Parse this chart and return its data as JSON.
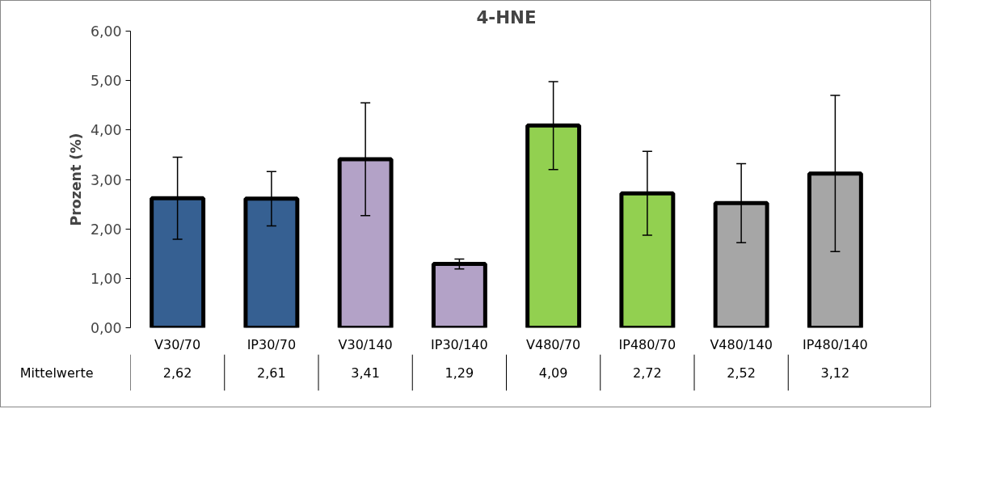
{
  "chart_data": {
    "type": "bar",
    "title": "4-HNE",
    "ylabel": "Prozent (%)",
    "categories": [
      "V30/70",
      "IP30/70",
      "V30/140",
      "IP30/140",
      "V480/70",
      "IP480/70",
      "V480/140",
      "IP480/140"
    ],
    "values": [
      2.62,
      2.61,
      3.41,
      1.29,
      4.09,
      2.72,
      2.52,
      3.12
    ],
    "colors": [
      "#366092",
      "#366092",
      "#b3a2c7",
      "#b3a2c7",
      "#92d050",
      "#92d050",
      "#a6a6a6",
      "#a6a6a6"
    ],
    "errors": [
      0.83,
      0.55,
      1.14,
      0.1,
      0.89,
      0.85,
      0.8,
      1.58
    ],
    "value_labels": [
      "2,62",
      "2,61",
      "3,41",
      "1,29",
      "4,09",
      "2,72",
      "2,52",
      "3,12"
    ],
    "annotations": [
      "Mittelwerte"
    ],
    "ylim": [
      0,
      6
    ],
    "yticks": [
      {
        "value": 0,
        "label": "0,00"
      },
      {
        "value": 1,
        "label": "1,00"
      },
      {
        "value": 2,
        "label": "2,00"
      },
      {
        "value": 3,
        "label": "3,00"
      },
      {
        "value": 4,
        "label": "4,00"
      },
      {
        "value": 5,
        "label": "5,00"
      },
      {
        "value": 6,
        "label": "6,00"
      }
    ],
    "grid": false
  }
}
